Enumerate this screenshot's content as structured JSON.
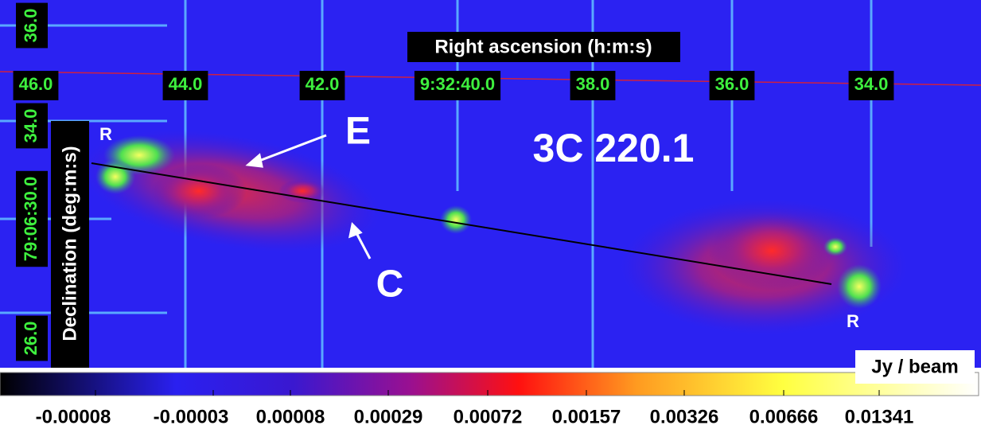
{
  "image": {
    "title": "3C 220.1",
    "x_axis": {
      "label": "Right ascension (h:m:s)",
      "ticks": [
        "46.0",
        "44.0",
        "42.0",
        "9:32:40.0",
        "38.0",
        "36.0",
        "34.0"
      ]
    },
    "y_axis": {
      "label": "Declination (deg:m:s)",
      "ticks": [
        "36.0",
        "34.0",
        "79:06:30.0",
        "26.0"
      ]
    },
    "annotations": [
      "E",
      "C",
      "R",
      "R"
    ]
  },
  "colorbar": {
    "label": "Jy / beam",
    "ticks": [
      "-0.00008",
      "-0.00003",
      "0.00008",
      "0.00029",
      "0.00072",
      "0.00157",
      "0.00326",
      "0.00666",
      "0.01341"
    ]
  }
}
